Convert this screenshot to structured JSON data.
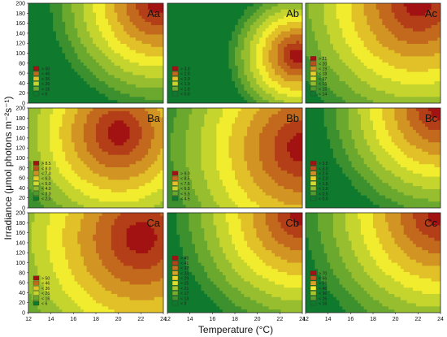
{
  "figure": {
    "ylabel": "Irradiance (μmol photons m⁻²s⁻¹)",
    "xlabel": "Temperature (°C)"
  },
  "chart_data": {
    "type": "heatmap",
    "subtype": "filled-contour-grid",
    "rows": 3,
    "cols": 3,
    "x_ticks": [
      12,
      14,
      16,
      18,
      20,
      22,
      24
    ],
    "y_ticks": [
      0,
      20,
      40,
      60,
      80,
      100,
      120,
      140,
      160,
      180,
      200
    ],
    "xlim": [
      12,
      24
    ],
    "ylim": [
      0,
      200
    ],
    "colors": {
      "low": "#0f7a2e",
      "mid": "#f2ec2e",
      "high": "#a31212"
    },
    "panels": [
      {
        "label": "Aa",
        "legend": [
          "> 50",
          "< 46",
          "< 36",
          "< 26",
          "< 16",
          "< 6"
        ],
        "peak_x": 23.5,
        "peak_y": 200,
        "spread": 11
      },
      {
        "label": "Ab",
        "legend": [
          "> 3.0",
          "< 2.0",
          "< 2.0",
          "< 1.0",
          "< 1.0",
          "< 0.0"
        ],
        "peak_x": 23.5,
        "peak_y": 95,
        "spread": 7
      },
      {
        "label": "Ac",
        "legend": [
          "> 21",
          "< 20",
          "< 19",
          "< 18",
          "< 17",
          "< 16",
          "< 15",
          "< 14"
        ],
        "peak_x": 22,
        "peak_y": 200,
        "spread": 14
      },
      {
        "label": "Ba",
        "legend": [
          "> 8.5",
          "< 8.0",
          "< 7.0",
          "< 6.0",
          "< 5.0",
          "< 4.0",
          "< 3.0",
          "< 2.0"
        ],
        "peak_x": 20,
        "peak_y": 150,
        "spread": 12
      },
      {
        "label": "Bb",
        "legend": [
          "> 9.0",
          "< 8.5",
          "< 7.5",
          "< 6.5",
          "< 5.5",
          "< 4.5"
        ],
        "peak_x": 24,
        "peak_y": 120,
        "spread": 15
      },
      {
        "label": "Bc",
        "legend": [
          "> 3.5",
          "< 3.0",
          "< 2.5",
          "< 2.0",
          "< 1.5",
          "< 1.0",
          "< 0.5",
          "< 0.0"
        ],
        "peak_x": 24,
        "peak_y": 200,
        "spread": 12
      },
      {
        "label": "Ca",
        "legend": [
          "> 50",
          "< 46",
          "< 36",
          "< 26",
          "< 16",
          "< 6"
        ],
        "peak_x": 22,
        "peak_y": 150,
        "spread": 16
      },
      {
        "label": "Cb",
        "legend": [
          "> 45",
          "< 41",
          "< 37",
          "< 33",
          "< 29",
          "< 25",
          "< 21",
          "< 17",
          "< 13",
          "< 9"
        ],
        "peak_x": 24,
        "peak_y": 200,
        "spread": 13
      },
      {
        "label": "Cc",
        "legend": [
          "> 70",
          "< 66",
          "< 56",
          "< 46",
          "< 36",
          "< 26",
          "< 16"
        ],
        "peak_x": 24,
        "peak_y": 200,
        "spread": 14
      }
    ]
  }
}
